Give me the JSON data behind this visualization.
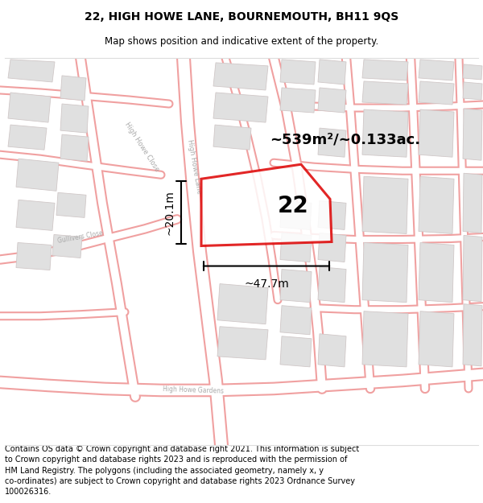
{
  "title": "22, HIGH HOWE LANE, BOURNEMOUTH, BH11 9QS",
  "subtitle": "Map shows position and indicative extent of the property.",
  "footer": "Contains OS data © Crown copyright and database right 2021. This information is subject\nto Crown copyright and database rights 2023 and is reproduced with the permission of\nHM Land Registry. The polygons (including the associated geometry, namely x, y\nco-ordinates) are subject to Crown copyright and database rights 2023 Ordnance Survey\n100026316.",
  "area_label": "~539m²/~0.133ac.",
  "width_label": "~47.7m",
  "height_label": "~20.1m",
  "number_label": "22",
  "bg_color": "#f7f7f7",
  "road_outline_color": "#f0a0a0",
  "road_fill_color": "#ffffff",
  "building_fill": "#e0e0e0",
  "building_edge": "#d0c8c8",
  "highlight_color": "#dd0000",
  "title_fontsize": 10,
  "subtitle_fontsize": 8.5,
  "footer_fontsize": 7,
  "label_fontsize": 13,
  "number_fontsize": 20,
  "measure_fontsize": 10
}
